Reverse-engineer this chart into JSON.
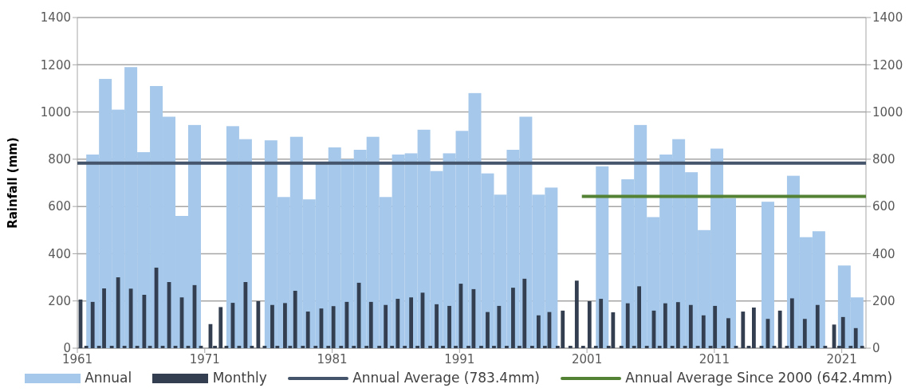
{
  "chart_data": {
    "type": "bar",
    "ylabel": "Rainfall (mm)",
    "xlim": [
      1961,
      2022.9
    ],
    "xticks": [
      1961,
      1971,
      1981,
      1991,
      2001,
      2011,
      2021
    ],
    "ylim": [
      0,
      1400
    ],
    "yticks": [
      0,
      200,
      400,
      600,
      800,
      1000,
      1200,
      1400
    ],
    "y2lim": [
      0,
      1400
    ],
    "y2ticks": [
      0,
      200,
      400,
      600,
      800,
      1000,
      1200,
      1400
    ],
    "grid": "y",
    "legend": "bottom",
    "series": [
      {
        "name": "Annual",
        "color": "#a6c8ea",
        "x": [
          1962.2,
          1963.2,
          1964.2,
          1965.2,
          1966.2,
          1967.2,
          1968.2,
          1969.2,
          1970.2,
          1971.2,
          1972.2,
          1973.2,
          1974.2,
          1975.2,
          1976.2,
          1977.2,
          1978.2,
          1979.2,
          1980.2,
          1981.2,
          1982.2,
          1983.2,
          1984.2,
          1985.2,
          1986.2,
          1987.2,
          1988.2,
          1989.2,
          1990.2,
          1991.2,
          1992.2,
          1993.2,
          1994.2,
          1995.2,
          1996.2,
          1997.2,
          1998.2,
          1999.2,
          2000.2,
          2001.2,
          2002.2,
          2003.2,
          2004.2,
          2005.2,
          2006.2,
          2007.2,
          2008.2,
          2009.2,
          2010.2,
          2011.2,
          2012.2,
          2013.2,
          2014.2,
          2015.2,
          2016.2,
          2017.2,
          2018.2,
          2019.2,
          2020.2,
          2021.2,
          2022.2
        ],
        "values": [
          820,
          1140,
          1010,
          1190,
          830,
          1110,
          980,
          560,
          945,
          null,
          null,
          940,
          885,
          null,
          880,
          640,
          895,
          630,
          780,
          850,
          800,
          840,
          895,
          640,
          820,
          825,
          925,
          750,
          825,
          920,
          1080,
          740,
          650,
          840,
          980,
          650,
          680,
          null,
          null,
          null,
          770,
          null,
          715,
          945,
          555,
          820,
          885,
          745,
          500,
          845,
          635,
          null,
          null,
          620,
          null,
          730,
          470,
          495,
          null,
          350,
          215
        ]
      },
      {
        "name": "Monthly",
        "color": "#333f50",
        "x": [
          1961.25,
          1961.7,
          1962.2,
          1962.7,
          1963.1,
          1963.7,
          1964.2,
          1964.7,
          1965.2,
          1965.7,
          1966.25,
          1966.7,
          1967.2,
          1967.7,
          1968.2,
          1968.7,
          1969.2,
          1969.7,
          1970.2,
          1970.7,
          1971.45,
          1971.8,
          1972.25,
          1972.7,
          1973.2,
          1973.7,
          1974.2,
          1974.7,
          1975.2,
          1975.7,
          1976.3,
          1976.7,
          1977.3,
          1977.7,
          1978.1,
          1978.7,
          1979.1,
          1979.7,
          1980.15,
          1980.7,
          1981.1,
          1981.7,
          1982.15,
          1982.7,
          1983.1,
          1983.7,
          1984.05,
          1984.7,
          1985.2,
          1985.7,
          1986.15,
          1986.7,
          1987.2,
          1987.7,
          1988.1,
          1988.7,
          1989.2,
          1989.7,
          1990.2,
          1990.7,
          1991.1,
          1991.7,
          1992.1,
          1992.7,
          1993.2,
          1993.7,
          1994.1,
          1994.7,
          1995.2,
          1995.7,
          1996.1,
          1996.7,
          1997.2,
          1997.7,
          1998.05,
          1998.7,
          1999.1,
          1999.7,
          2000.2,
          2000.7,
          2001.2,
          2001.7,
          2002.1,
          2002.7,
          2003.05,
          2003.7,
          2004.2,
          2004.7,
          2005.1,
          2005.7,
          2006.25,
          2006.7,
          2007.15,
          2007.7,
          2008.15,
          2008.7,
          2009.15,
          2009.7,
          2010.15,
          2010.7,
          2011.05,
          2011.7,
          2012.1,
          2012.7,
          2013.25,
          2013.7,
          2014.1,
          2014.7,
          2015.2,
          2015.7,
          2016.15,
          2016.7,
          2017.1,
          2017.7,
          2018.1,
          2018.7,
          2019.1,
          2019.7,
          2020.4,
          2020.8,
          2021.1,
          2021.7,
          2022.1,
          2022.6
        ],
        "values": [
          206,
          10,
          196,
          10,
          253,
          10,
          300,
          10,
          252,
          10,
          226,
          10,
          341,
          10,
          280,
          10,
          215,
          10,
          267,
          10,
          102,
          10,
          174,
          10,
          192,
          10,
          280,
          10,
          199,
          10,
          183,
          10,
          191,
          10,
          243,
          10,
          155,
          10,
          168,
          10,
          178,
          10,
          196,
          10,
          277,
          10,
          196,
          10,
          183,
          10,
          209,
          10,
          215,
          10,
          235,
          10,
          186,
          10,
          179,
          10,
          273,
          10,
          250,
          10,
          153,
          10,
          179,
          10,
          256,
          10,
          294,
          10,
          139,
          10,
          153,
          10,
          159,
          10,
          286,
          10,
          199,
          10,
          209,
          10,
          152,
          10,
          190,
          10,
          262,
          10,
          159,
          10,
          190,
          10,
          195,
          10,
          183,
          10,
          139,
          10,
          179,
          10,
          127,
          10,
          155,
          10,
          172,
          10,
          124,
          10,
          159,
          10,
          211,
          10,
          124,
          10,
          183,
          10,
          100,
          10,
          132,
          10,
          85,
          10
        ]
      },
      {
        "name": "Annual Average (783.4mm)",
        "type": "line",
        "color": "#44546a",
        "x": [
          1961,
          2022.9
        ],
        "values": [
          783.4,
          783.4
        ]
      },
      {
        "name": "Annual Average Since 2000 (642.4mm)",
        "type": "line",
        "color": "#548235",
        "x": [
          2000.6,
          2022.9
        ],
        "values": [
          642.4,
          642.4
        ]
      }
    ]
  }
}
